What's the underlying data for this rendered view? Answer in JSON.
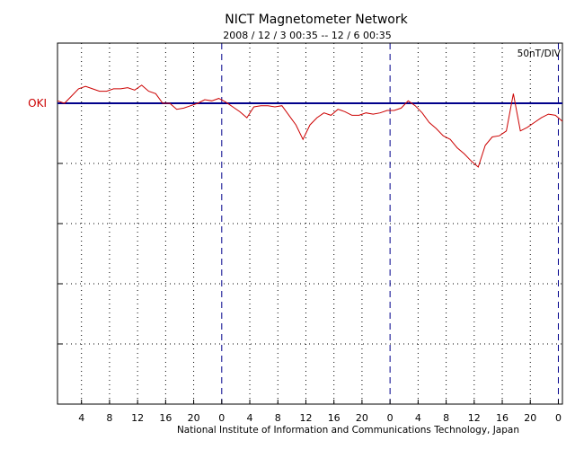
{
  "chart_data": {
    "type": "line",
    "title": "NICT Magnetometer Network",
    "subtitle": "2008 / 12 / 3   00:35 -- 12 / 6   00:35",
    "scale_label": "50nT/DIV",
    "credit": "National Institute of Information and Communications Technology, Japan",
    "xlabel": "",
    "ylabel": "",
    "x_unit": "hours since 2008-12-03 00:35 (UT)",
    "xlim": [
      0,
      72
    ],
    "ylim": [
      -250,
      50
    ],
    "grid": true,
    "x_tick_labels": [
      "4",
      "8",
      "12",
      "16",
      "20",
      "0",
      "4",
      "8",
      "12",
      "16",
      "20",
      "0",
      "4",
      "8",
      "12",
      "16",
      "20",
      "0"
    ],
    "x_tick_hours": [
      3.42,
      7.42,
      11.42,
      15.42,
      19.42,
      23.42,
      27.42,
      31.42,
      35.42,
      39.42,
      43.42,
      47.42,
      51.42,
      55.42,
      59.42,
      63.42,
      67.42,
      71.42
    ],
    "day_boundaries_hours": [
      23.42,
      47.42,
      71.42
    ],
    "series": [
      {
        "name": "OKI",
        "color": "#cc0000",
        "baseline_color": "#00008b",
        "unit": "nT (relative to baseline)",
        "x": [
          0,
          1,
          2,
          3,
          4,
          5,
          6,
          7,
          8,
          9,
          10,
          11,
          12,
          13,
          14,
          15,
          16,
          17,
          18,
          19,
          20,
          21,
          22,
          23,
          24,
          25,
          26,
          27,
          28,
          29,
          30,
          31,
          32,
          33,
          34,
          35,
          36,
          37,
          38,
          39,
          40,
          41,
          42,
          43,
          44,
          45,
          46,
          47,
          48,
          49,
          50,
          51,
          52,
          53,
          54,
          55,
          56,
          57,
          58,
          59,
          60,
          61,
          62,
          63,
          64,
          65,
          66,
          67,
          68,
          69,
          70,
          71,
          72
        ],
        "values": [
          2,
          0,
          6,
          12,
          14,
          12,
          10,
          10,
          12,
          12,
          13,
          11,
          15,
          10,
          8,
          0,
          0,
          -5,
          -4,
          -2,
          0,
          3,
          2,
          4,
          1,
          -3,
          -7,
          -12,
          -3,
          -2,
          -2,
          -3,
          -2,
          -10,
          -18,
          -30,
          -18,
          -12,
          -8,
          -10,
          -5,
          -7,
          -10,
          -10,
          -8,
          -9,
          -8,
          -6,
          -6,
          -4,
          2,
          -2,
          -8,
          -16,
          -21,
          -27,
          -30,
          -37,
          -42,
          -48,
          -53,
          -35,
          -28,
          -27,
          -23,
          8,
          -23,
          -20,
          -16,
          -12,
          -9,
          -10,
          -15
        ]
      }
    ]
  }
}
